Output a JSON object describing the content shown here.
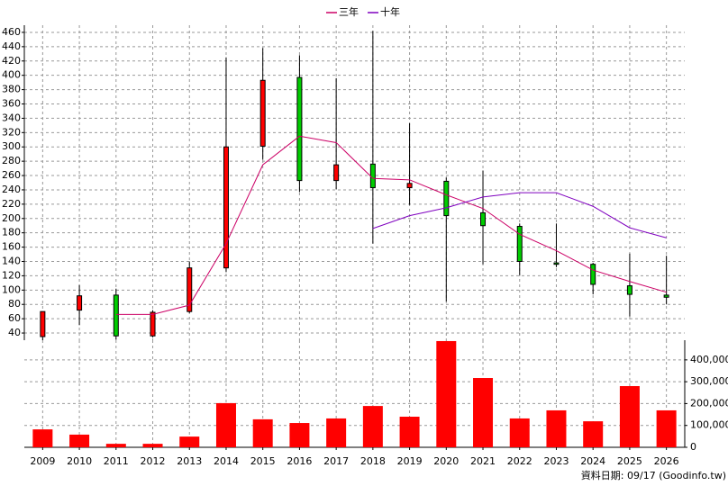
{
  "chart_data": [
    {
      "type": "candlestick",
      "categories": [
        "2009",
        "2010",
        "2011",
        "2012",
        "2013",
        "2014",
        "2015",
        "2016",
        "2017",
        "2018",
        "2019",
        "2020",
        "2021",
        "2022",
        "2023",
        "2024",
        "2025",
        "2026"
      ],
      "open": [
        35,
        72,
        93,
        36,
        70,
        131,
        301,
        397,
        253,
        276,
        243,
        252,
        208,
        189,
        138,
        136,
        106,
        93
      ],
      "high": [
        70,
        107,
        102,
        72,
        140,
        425,
        438,
        428,
        396,
        462,
        333,
        257,
        267,
        193,
        193,
        138,
        151,
        148
      ],
      "low": [
        30,
        51,
        31,
        34,
        68,
        125,
        282,
        237,
        241,
        165,
        219,
        84,
        136,
        121,
        132,
        94,
        63,
        80
      ],
      "close": [
        70,
        92,
        36,
        69,
        131,
        300,
        393,
        253,
        275,
        243,
        249,
        204,
        190,
        140,
        136,
        108,
        94,
        90
      ],
      "up_color": "#ff0000",
      "down_color": "#00cc00",
      "series": [
        {
          "name": "三年",
          "color": "#cc0066",
          "values": [
            null,
            null,
            66,
            66,
            79,
            165,
            275,
            315,
            306,
            256,
            254,
            233,
            214,
            178,
            155,
            128,
            112,
            97
          ]
        },
        {
          "name": "十年",
          "color": "#7f00bf",
          "values": [
            null,
            null,
            null,
            null,
            null,
            null,
            null,
            null,
            null,
            186,
            204,
            215,
            230,
            236,
            236,
            217,
            187,
            173
          ]
        }
      ],
      "ylim": [
        30,
        470
      ],
      "yticks": [
        40,
        60,
        80,
        100,
        120,
        140,
        160,
        180,
        200,
        220,
        240,
        260,
        280,
        300,
        320,
        340,
        360,
        380,
        400,
        420,
        440,
        460
      ],
      "grid": true
    },
    {
      "type": "bar",
      "values": [
        82000,
        58000,
        16000,
        16000,
        49000,
        202000,
        128000,
        111000,
        132000,
        189000,
        140000,
        486000,
        317000,
        132000,
        169000,
        119000,
        280000,
        169000
      ],
      "color": "#ff0000",
      "ylim": [
        0,
        490000
      ],
      "yticks": [
        0,
        {
          "value": 100000,
          "label": "100,000"
        },
        {
          "value": 200000,
          "label": "200,000"
        },
        {
          "value": 300000,
          "label": "300,000"
        },
        {
          "value": 400000,
          "label": "400,000"
        }
      ],
      "grid": true
    }
  ],
  "footer": "資料日期: 09/17 (Goodinfo.tw)"
}
